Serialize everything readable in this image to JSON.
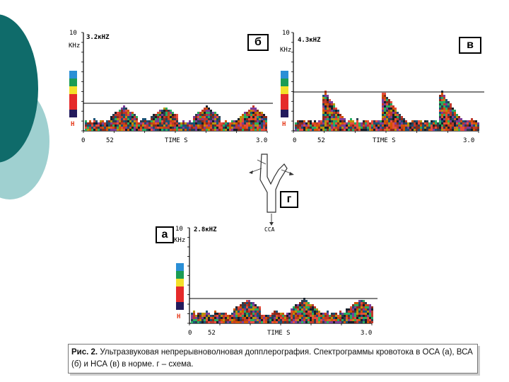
{
  "palette": {
    "teal_dark": "#0f6b6a",
    "teal_light": "#9fd0d0",
    "hmark": "#e53a1a"
  },
  "scale_colors": [
    "#2a8fd6",
    "#1a9c55",
    "#f3e02a",
    "#e52a2a",
    "#e52a2a",
    "#231a5c"
  ],
  "panels": [
    {
      "id": "b",
      "letter": "б",
      "y_top": "10",
      "y_unit": "KHz",
      "freq": "3.2кHZ",
      "h_mark": "H",
      "x_start": "0",
      "x_mid": "52",
      "time_label": "TIME S",
      "x_end": "3.0"
    },
    {
      "id": "v",
      "letter": "в",
      "y_top": "10",
      "y_unit": "KHz",
      "freq": "4.3кHZ",
      "h_mark": "H",
      "x_start": "0",
      "x_mid": "52",
      "time_label": "TIME S",
      "x_end": "3.0"
    },
    {
      "id": "a",
      "letter": "а",
      "y_top": "10",
      "y_unit": "KHz",
      "freq": "2.8кHZ",
      "h_mark": "H",
      "x_start": "0",
      "x_mid": "52",
      "time_label": "TIME S",
      "x_end": "3.0"
    }
  ],
  "scheme": {
    "letter": "г",
    "label": "CCA"
  },
  "caption": {
    "label": "Рис. 2.",
    "text": "Ультразвуковая непрерывноволновая допплерография. Спектрограммы кровотока в ОСА (а), ВСА (б) и НСА (в) в норме. г – схема."
  }
}
